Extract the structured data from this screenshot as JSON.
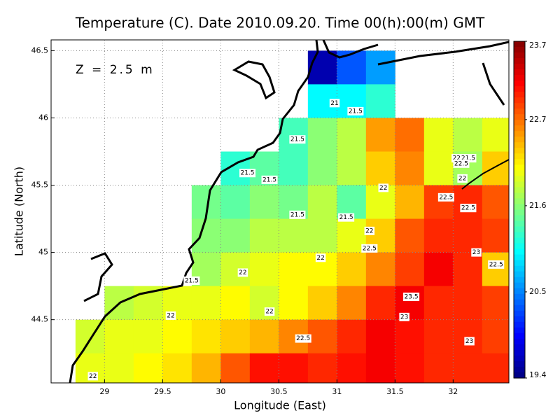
{
  "chart_data": {
    "type": "heatmap",
    "title": "Temperature (C). Date 2010.09.20. Time 00(h):00(m) GMT",
    "annotation": "Z = 2.5 m",
    "x_label": "Longitude (East)",
    "y_label": "Latitude (North)",
    "xlim": [
      28.54,
      32.48
    ],
    "ylim": [
      44.03,
      46.58
    ],
    "xticks": [
      29,
      29.5,
      30,
      30.5,
      31,
      31.5,
      32
    ],
    "yticks": [
      44.5,
      45,
      45.5,
      46,
      46.5
    ],
    "grid": true,
    "colormap": "jet",
    "clim": [
      19.4,
      23.7
    ],
    "cticks": [
      19.4,
      20.5,
      21.6,
      22.7,
      23.7
    ],
    "lon": [
      28.625,
      28.875,
      29.125,
      29.375,
      29.625,
      29.875,
      30.125,
      30.375,
      30.625,
      30.875,
      31.125,
      31.375,
      31.625,
      31.875,
      32.125,
      32.375
    ],
    "lat": [
      46.375,
      46.125,
      45.875,
      45.625,
      45.375,
      45.125,
      44.875,
      44.625,
      44.375,
      44.125
    ],
    "z": [
      [
        null,
        null,
        null,
        null,
        null,
        null,
        null,
        null,
        null,
        19.6,
        20.3,
        20.6,
        null,
        null,
        null,
        null
      ],
      [
        null,
        null,
        null,
        null,
        null,
        null,
        null,
        null,
        null,
        21.0,
        21.0,
        21.2,
        null,
        null,
        null,
        null
      ],
      [
        null,
        null,
        null,
        null,
        null,
        null,
        null,
        null,
        21.3,
        21.6,
        21.8,
        22.5,
        22.7,
        22.0,
        21.8,
        22.0
      ],
      [
        null,
        null,
        null,
        null,
        null,
        null,
        21.2,
        21.4,
        21.3,
        21.6,
        21.8,
        22.3,
        22.6,
        22.0,
        21.7,
        22.3
      ],
      [
        null,
        null,
        null,
        null,
        null,
        21.5,
        21.4,
        21.6,
        21.5,
        21.8,
        21.4,
        22.0,
        22.4,
        22.9,
        23.0,
        22.8
      ],
      [
        null,
        null,
        null,
        null,
        null,
        21.6,
        21.6,
        21.8,
        21.8,
        21.8,
        22.0,
        22.3,
        22.8,
        23.0,
        23.0,
        22.9
      ],
      [
        null,
        null,
        null,
        null,
        null,
        21.7,
        21.9,
        22.0,
        22.1,
        22.1,
        22.3,
        22.6,
        22.9,
        23.2,
        23.0,
        22.3
      ],
      [
        null,
        null,
        21.8,
        21.9,
        22.0,
        22.0,
        22.1,
        21.9,
        22.1,
        22.3,
        22.6,
        23.0,
        23.2,
        23.0,
        23.0,
        22.9
      ],
      [
        null,
        21.9,
        22.0,
        22.0,
        22.1,
        22.2,
        22.3,
        22.4,
        22.6,
        22.8,
        23.0,
        23.2,
        23.1,
        23.0,
        23.0,
        22.9
      ],
      [
        null,
        22.0,
        22.0,
        22.1,
        22.2,
        22.4,
        22.8,
        23.1,
        23.1,
        23.0,
        23.1,
        23.2,
        23.1,
        23.0,
        23.0,
        23.0
      ]
    ],
    "contour_labels": [
      {
        "x": 30.98,
        "y": 46.11,
        "value": 21
      },
      {
        "x": 31.16,
        "y": 46.05,
        "value": 21.5
      },
      {
        "x": 30.66,
        "y": 45.84,
        "value": 21.5
      },
      {
        "x": 30.23,
        "y": 45.59,
        "value": 21.5
      },
      {
        "x": 30.42,
        "y": 45.54,
        "value": 21.5
      },
      {
        "x": 31.4,
        "y": 45.48,
        "value": 22
      },
      {
        "x": 32.03,
        "y": 45.7,
        "value": 22
      },
      {
        "x": 32.13,
        "y": 45.7,
        "value": 21.5
      },
      {
        "x": 32.07,
        "y": 45.66,
        "value": 22.5
      },
      {
        "x": 32.08,
        "y": 45.55,
        "value": 22
      },
      {
        "x": 31.94,
        "y": 45.41,
        "value": 22.5
      },
      {
        "x": 32.13,
        "y": 45.33,
        "value": 22.5
      },
      {
        "x": 30.66,
        "y": 45.28,
        "value": 21.5
      },
      {
        "x": 31.08,
        "y": 45.26,
        "value": 21.5
      },
      {
        "x": 31.28,
        "y": 45.16,
        "value": 22
      },
      {
        "x": 31.28,
        "y": 45.03,
        "value": 22.5
      },
      {
        "x": 30.86,
        "y": 44.96,
        "value": 22
      },
      {
        "x": 32.2,
        "y": 45.0,
        "value": 23
      },
      {
        "x": 32.37,
        "y": 44.91,
        "value": 22.5
      },
      {
        "x": 30.19,
        "y": 44.85,
        "value": 22
      },
      {
        "x": 29.75,
        "y": 44.79,
        "value": 21.5
      },
      {
        "x": 31.64,
        "y": 44.67,
        "value": 23.5
      },
      {
        "x": 30.42,
        "y": 44.56,
        "value": 22
      },
      {
        "x": 29.57,
        "y": 44.53,
        "value": 22
      },
      {
        "x": 31.58,
        "y": 44.52,
        "value": 23
      },
      {
        "x": 30.71,
        "y": 44.36,
        "value": 22.5
      },
      {
        "x": 32.14,
        "y": 44.34,
        "value": 23
      },
      {
        "x": 28.9,
        "y": 44.08,
        "value": 22
      }
    ]
  }
}
